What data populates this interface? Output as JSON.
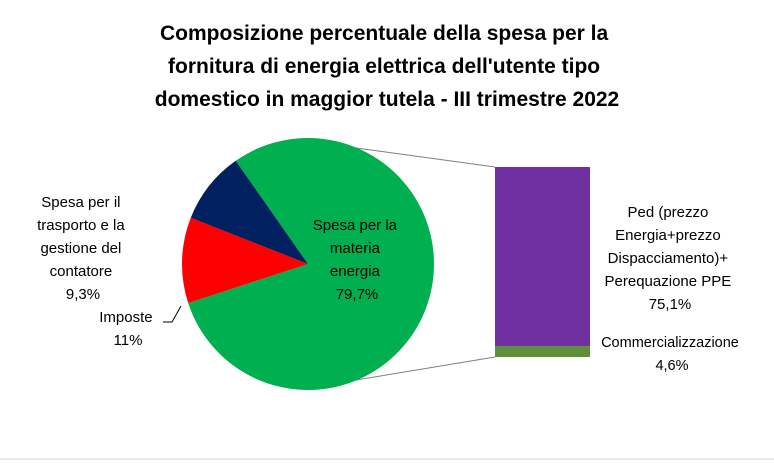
{
  "chart_data": {
    "type": "bar-of-pie",
    "title": [
      "Composizione percentuale della spesa per la",
      "fornitura di energia elettrica dell'utente tipo",
      "domestico in maggior tutela - III trimestre 2022"
    ],
    "pie": {
      "slices": [
        {
          "label": [
            "Spesa per la",
            "materia",
            "energia"
          ],
          "value_label": "79,7%",
          "value": 79.7,
          "color": "#00b050"
        },
        {
          "label": [
            "Imposte"
          ],
          "value_label": "11%",
          "value": 11.0,
          "color": "#ff0000"
        },
        {
          "label": [
            "Spesa per il",
            "trasporto e la",
            "gestione del",
            "contatore"
          ],
          "value_label": "9,3%",
          "value": 9.3,
          "color": "#002060"
        }
      ]
    },
    "bar": {
      "segments": [
        {
          "label": [
            "Ped (prezzo",
            "Energia+prezzo",
            "Dispacciamento)+",
            "Perequazione PPE"
          ],
          "value_label": "75,1%",
          "value": 75.1,
          "color": "#7030a0"
        },
        {
          "label": [
            "Commercializzazione"
          ],
          "value_label": "4,6%",
          "value": 4.6,
          "color": "#5f8f3b"
        }
      ]
    }
  }
}
